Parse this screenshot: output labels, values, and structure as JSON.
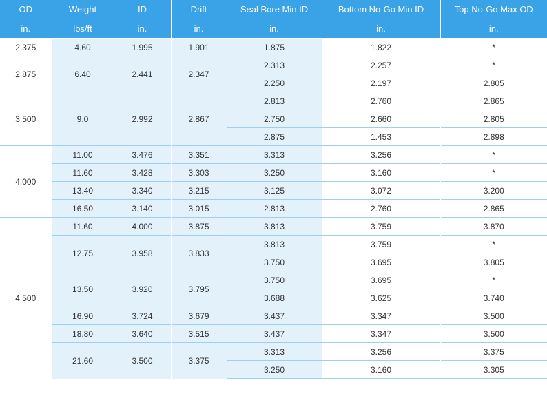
{
  "header": {
    "columns": [
      "OD",
      "Weight",
      "ID",
      "Drift",
      "Seal Bore Min ID",
      "Bottom No-Go Min ID",
      "Top No-Go Max OD"
    ],
    "units": [
      "in.",
      "lbs/ft",
      "in.",
      "in.",
      "in.",
      "in.",
      "in."
    ]
  },
  "groups": [
    {
      "od": "2.375",
      "weights": [
        {
          "weight": "4.60",
          "id": "1.995",
          "drift": "1.901",
          "rows": [
            {
              "seal": "1.875",
              "bottom": "1.822",
              "top": "*"
            }
          ]
        }
      ]
    },
    {
      "od": "2.875",
      "weights": [
        {
          "weight": "6.40",
          "id": "2.441",
          "drift": "2.347",
          "rows": [
            {
              "seal": "2.313",
              "bottom": "2.257",
              "top": "*"
            },
            {
              "seal": "2.250",
              "bottom": "2.197",
              "top": "2.805"
            }
          ]
        }
      ]
    },
    {
      "od": "3.500",
      "weights": [
        {
          "weight": "9.0",
          "id": "2.992",
          "drift": "2.867",
          "rows": [
            {
              "seal": "2.813",
              "bottom": "2.760",
              "top": "2.865"
            },
            {
              "seal": "2.750",
              "bottom": "2.660",
              "top": "2.805"
            },
            {
              "seal": "2.875",
              "bottom": "1.453",
              "top": "2.898"
            }
          ]
        }
      ]
    },
    {
      "od": "4.000",
      "weights": [
        {
          "weight": "11.00",
          "id": "3.476",
          "drift": "3.351",
          "rows": [
            {
              "seal": "3.313",
              "bottom": "3.256",
              "top": "*"
            }
          ]
        },
        {
          "weight": "11.60",
          "id": "3.428",
          "drift": "3.303",
          "rows": [
            {
              "seal": "3.250",
              "bottom": "3.160",
              "top": "*"
            }
          ]
        },
        {
          "weight": "13.40",
          "id": "3.340",
          "drift": "3.215",
          "rows": [
            {
              "seal": "3.125",
              "bottom": "3.072",
              "top": "3.200"
            }
          ]
        },
        {
          "weight": "16.50",
          "id": "3.140",
          "drift": "3.015",
          "rows": [
            {
              "seal": "2.813",
              "bottom": "2.760",
              "top": "2.865"
            }
          ]
        }
      ]
    },
    {
      "od": "4.500",
      "weights": [
        {
          "weight": "11.60",
          "id": "4.000",
          "drift": "3.875",
          "rows": [
            {
              "seal": "3.813",
              "bottom": "3.759",
              "top": "3.870"
            }
          ]
        },
        {
          "weight": "12.75",
          "id": "3.958",
          "drift": "3.833",
          "rows": [
            {
              "seal": "3.813",
              "bottom": "3.759",
              "top": "*"
            },
            {
              "seal": "3.750",
              "bottom": "3.695",
              "top": "3.805"
            }
          ]
        },
        {
          "weight": "13.50",
          "id": "3.920",
          "drift": "3.795",
          "rows": [
            {
              "seal": "3.750",
              "bottom": "3.695",
              "top": "*"
            },
            {
              "seal": "3.688",
              "bottom": "3.625",
              "top": "3.740"
            }
          ]
        },
        {
          "weight": "16.90",
          "id": "3.724",
          "drift": "3.679",
          "rows": [
            {
              "seal": "3.437",
              "bottom": "3.347",
              "top": "3.500"
            }
          ]
        },
        {
          "weight": "18.80",
          "id": "3.640",
          "drift": "3.515",
          "rows": [
            {
              "seal": "3.437",
              "bottom": "3.347",
              "top": "3.500"
            }
          ]
        },
        {
          "weight": "21.60",
          "id": "3.500",
          "drift": "3.375",
          "rows": [
            {
              "seal": "3.313",
              "bottom": "3.256",
              "top": "3.375"
            },
            {
              "seal": "3.250",
              "bottom": "3.160",
              "top": "3.305"
            }
          ]
        }
      ]
    }
  ]
}
